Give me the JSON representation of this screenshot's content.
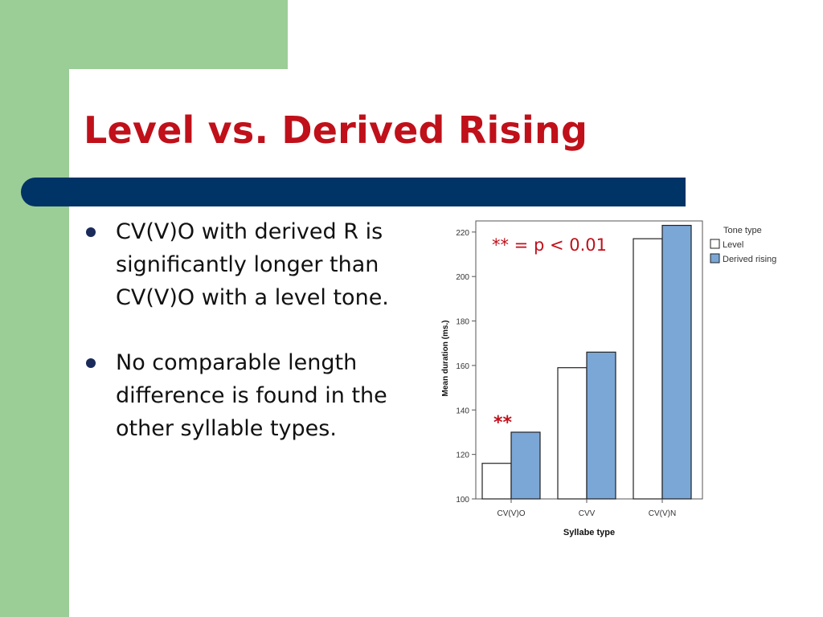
{
  "slide": {
    "title": "Level vs. Derived Rising",
    "bullets": [
      "CV(V)O with derived R is significantly longer than CV(V)O with a level tone.",
      "No comparable length difference is found in the other syllable types."
    ]
  },
  "colors": {
    "title": "#c0101a",
    "bar": "#003366",
    "side_green": "#9bcd97",
    "level_fill": "#ffffff",
    "derived_fill": "#7ba7d7",
    "annotation": "#c0101a"
  },
  "chart_data": {
    "type": "bar",
    "categories": [
      "CV(V)O",
      "CVV",
      "CV(V)N"
    ],
    "series": [
      {
        "name": "Level",
        "values": [
          116,
          159,
          217
        ]
      },
      {
        "name": "Derived rising",
        "values": [
          130,
          166,
          223
        ]
      }
    ],
    "xlabel": "Syllabe type",
    "ylabel": "Mean duration (ms.)",
    "ylim": [
      100,
      225
    ],
    "yticks": [
      100,
      120,
      140,
      160,
      180,
      200,
      220
    ],
    "legend_title": "Tone type",
    "legend_position": "right",
    "grid": false,
    "annotations": {
      "significance_key": "** = p < 0.01",
      "marker": "**",
      "marker_category": "CV(V)O"
    }
  }
}
